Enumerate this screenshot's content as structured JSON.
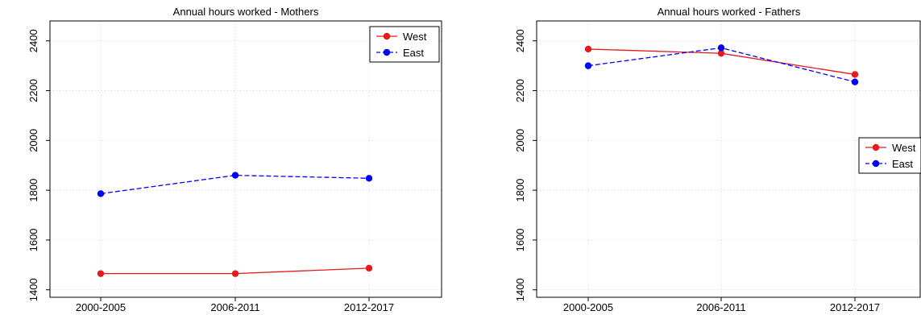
{
  "chart_data": [
    {
      "type": "line",
      "title": "Annual hours worked - Mothers",
      "categories": [
        "2000-2005",
        "2006-2011",
        "2012-2017"
      ],
      "ylim": [
        1370,
        2480
      ],
      "yticks": [
        1400,
        1600,
        1800,
        2000,
        2200,
        2400
      ],
      "grid": true,
      "legend": "top-right",
      "series": [
        {
          "name": "West",
          "values": [
            1465,
            1465,
            1487
          ],
          "color": "#e41a1c",
          "dash": "solid"
        },
        {
          "name": "East",
          "values": [
            1786,
            1860,
            1848
          ],
          "color": "#0000ff",
          "dash": "dashed"
        }
      ]
    },
    {
      "type": "line",
      "title": "Annual hours worked - Fathers",
      "categories": [
        "2000-2005",
        "2006-2011",
        "2012-2017"
      ],
      "ylim": [
        1370,
        2480
      ],
      "yticks": [
        1400,
        1600,
        1800,
        2000,
        2200,
        2400
      ],
      "grid": true,
      "legend": "right",
      "series": [
        {
          "name": "West",
          "values": [
            2367,
            2350,
            2265
          ],
          "color": "#e41a1c",
          "dash": "solid"
        },
        {
          "name": "East",
          "values": [
            2300,
            2372,
            2235
          ],
          "color": "#0000ff",
          "dash": "dashed"
        }
      ]
    }
  ]
}
